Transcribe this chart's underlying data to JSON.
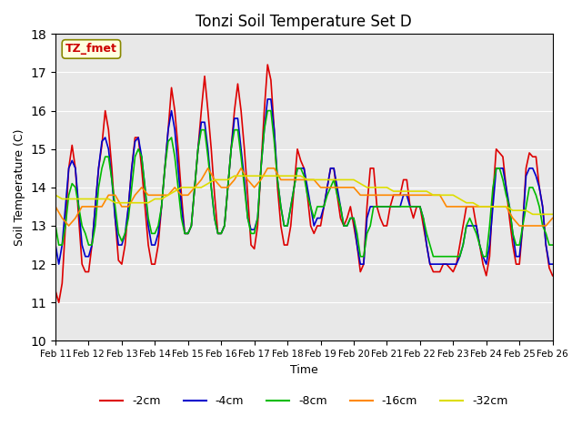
{
  "title": "Tonzi Soil Temperature Set D",
  "xlabel": "Time",
  "ylabel": "Soil Temperature (C)",
  "ylim": [
    10.0,
    18.0
  ],
  "yticks": [
    10.0,
    11.0,
    12.0,
    13.0,
    14.0,
    15.0,
    16.0,
    17.0,
    18.0
  ],
  "xlim": [
    0,
    15
  ],
  "xtick_labels": [
    "Feb 11",
    "Feb 12",
    "Feb 13",
    "Feb 14",
    "Feb 15",
    "Feb 16",
    "Feb 17",
    "Feb 18",
    "Feb 19",
    "Feb 20",
    "Feb 21",
    "Feb 22",
    "Feb 23",
    "Feb 24",
    "Feb 25",
    "Feb 26"
  ],
  "bg_color": "#e8e8e8",
  "legend_label": "TZ_fmet",
  "series": {
    "neg2cm": {
      "color": "#dd0000",
      "label": "-2cm",
      "x": [
        0.0,
        0.1,
        0.2,
        0.3,
        0.4,
        0.5,
        0.6,
        0.7,
        0.8,
        0.9,
        1.0,
        1.1,
        1.2,
        1.3,
        1.4,
        1.5,
        1.6,
        1.7,
        1.8,
        1.9,
        2.0,
        2.1,
        2.2,
        2.3,
        2.4,
        2.5,
        2.6,
        2.7,
        2.8,
        2.9,
        3.0,
        3.1,
        3.2,
        3.3,
        3.4,
        3.5,
        3.6,
        3.7,
        3.8,
        3.9,
        4.0,
        4.1,
        4.2,
        4.3,
        4.4,
        4.5,
        4.6,
        4.7,
        4.8,
        4.9,
        5.0,
        5.1,
        5.2,
        5.3,
        5.4,
        5.5,
        5.6,
        5.7,
        5.8,
        5.9,
        6.0,
        6.1,
        6.2,
        6.3,
        6.4,
        6.5,
        6.6,
        6.7,
        6.8,
        6.9,
        7.0,
        7.1,
        7.2,
        7.3,
        7.4,
        7.5,
        7.6,
        7.7,
        7.8,
        7.9,
        8.0,
        8.1,
        8.2,
        8.3,
        8.4,
        8.5,
        8.6,
        8.7,
        8.8,
        8.9,
        9.0,
        9.1,
        9.2,
        9.3,
        9.4,
        9.5,
        9.6,
        9.7,
        9.8,
        9.9,
        10.0,
        10.1,
        10.2,
        10.3,
        10.4,
        10.5,
        10.6,
        10.7,
        10.8,
        10.9,
        11.0,
        11.1,
        11.2,
        11.3,
        11.4,
        11.5,
        11.6,
        11.7,
        11.8,
        11.9,
        12.0,
        12.1,
        12.2,
        12.3,
        12.4,
        12.5,
        12.6,
        12.7,
        12.8,
        12.9,
        13.0,
        13.1,
        13.2,
        13.3,
        13.4,
        13.5,
        13.6,
        13.7,
        13.8,
        13.9,
        14.0,
        14.1,
        14.2,
        14.3,
        14.4,
        14.5,
        14.6,
        14.7,
        14.8,
        14.9,
        15.0
      ],
      "y": [
        11.3,
        11.0,
        11.5,
        13.0,
        14.5,
        15.1,
        14.5,
        13.2,
        12.0,
        11.8,
        11.8,
        12.5,
        13.5,
        14.5,
        15.1,
        16.0,
        15.5,
        14.5,
        13.2,
        12.1,
        12.0,
        12.5,
        13.5,
        14.5,
        15.3,
        15.3,
        14.5,
        13.5,
        12.5,
        12.0,
        12.0,
        12.5,
        13.5,
        14.5,
        15.5,
        16.6,
        16.0,
        15.0,
        13.8,
        12.8,
        12.8,
        13.0,
        14.0,
        15.0,
        16.0,
        16.9,
        16.0,
        15.0,
        13.8,
        12.8,
        12.8,
        13.0,
        14.0,
        15.0,
        16.0,
        16.7,
        16.0,
        15.0,
        13.8,
        12.5,
        12.4,
        13.0,
        14.5,
        16.0,
        17.2,
        16.8,
        15.5,
        14.0,
        13.0,
        12.5,
        12.5,
        13.0,
        14.0,
        15.0,
        14.7,
        14.5,
        13.8,
        13.0,
        12.8,
        13.0,
        13.0,
        13.5,
        14.0,
        14.5,
        14.5,
        13.8,
        13.2,
        13.0,
        13.2,
        13.5,
        13.0,
        12.5,
        11.8,
        12.0,
        13.5,
        14.5,
        14.5,
        13.5,
        13.2,
        13.0,
        13.0,
        13.5,
        13.8,
        13.8,
        13.8,
        14.2,
        14.2,
        13.5,
        13.2,
        13.5,
        13.5,
        13.0,
        12.5,
        12.0,
        11.8,
        11.8,
        11.8,
        12.0,
        12.0,
        11.9,
        11.8,
        12.0,
        12.5,
        13.0,
        13.5,
        13.5,
        13.5,
        13.0,
        12.5,
        12.0,
        11.7,
        12.2,
        13.8,
        15.0,
        14.9,
        14.8,
        14.0,
        13.2,
        12.5,
        12.0,
        12.0,
        13.0,
        14.5,
        14.9,
        14.8,
        14.8,
        14.0,
        13.5,
        12.5,
        11.9,
        11.7
      ]
    },
    "neg4cm": {
      "color": "#0000cc",
      "label": "-4cm",
      "x": [
        0.0,
        0.1,
        0.2,
        0.3,
        0.4,
        0.5,
        0.6,
        0.7,
        0.8,
        0.9,
        1.0,
        1.1,
        1.2,
        1.3,
        1.4,
        1.5,
        1.6,
        1.7,
        1.8,
        1.9,
        2.0,
        2.1,
        2.2,
        2.3,
        2.4,
        2.5,
        2.6,
        2.7,
        2.8,
        2.9,
        3.0,
        3.1,
        3.2,
        3.3,
        3.4,
        3.5,
        3.6,
        3.7,
        3.8,
        3.9,
        4.0,
        4.1,
        4.2,
        4.3,
        4.4,
        4.5,
        4.6,
        4.7,
        4.8,
        4.9,
        5.0,
        5.1,
        5.2,
        5.3,
        5.4,
        5.5,
        5.6,
        5.7,
        5.8,
        5.9,
        6.0,
        6.1,
        6.2,
        6.3,
        6.4,
        6.5,
        6.6,
        6.7,
        6.8,
        6.9,
        7.0,
        7.1,
        7.2,
        7.3,
        7.4,
        7.5,
        7.6,
        7.7,
        7.8,
        7.9,
        8.0,
        8.1,
        8.2,
        8.3,
        8.4,
        8.5,
        8.6,
        8.7,
        8.8,
        8.9,
        9.0,
        9.1,
        9.2,
        9.3,
        9.4,
        9.5,
        9.6,
        9.7,
        9.8,
        9.9,
        10.0,
        10.1,
        10.2,
        10.3,
        10.4,
        10.5,
        10.6,
        10.7,
        10.8,
        10.9,
        11.0,
        11.1,
        11.2,
        11.3,
        11.4,
        11.5,
        11.6,
        11.7,
        11.8,
        11.9,
        12.0,
        12.1,
        12.2,
        12.3,
        12.4,
        12.5,
        12.6,
        12.7,
        12.8,
        12.9,
        13.0,
        13.1,
        13.2,
        13.3,
        13.4,
        13.5,
        13.6,
        13.7,
        13.8,
        13.9,
        14.0,
        14.1,
        14.2,
        14.3,
        14.4,
        14.5,
        14.6,
        14.7,
        14.8,
        14.9,
        15.0
      ],
      "y": [
        12.5,
        12.0,
        12.5,
        13.5,
        14.5,
        14.7,
        14.5,
        13.5,
        12.5,
        12.2,
        12.2,
        12.5,
        13.5,
        14.5,
        15.2,
        15.3,
        15.0,
        14.2,
        13.2,
        12.5,
        12.5,
        12.8,
        13.5,
        14.5,
        15.2,
        15.3,
        14.8,
        14.0,
        13.0,
        12.5,
        12.5,
        12.8,
        13.5,
        14.5,
        15.5,
        16.0,
        15.5,
        14.5,
        13.5,
        12.8,
        12.8,
        13.0,
        14.0,
        15.0,
        15.7,
        15.7,
        15.0,
        14.0,
        13.2,
        12.8,
        12.8,
        13.0,
        14.0,
        15.0,
        15.8,
        15.8,
        15.0,
        14.2,
        13.2,
        12.9,
        12.9,
        13.2,
        14.5,
        15.5,
        16.3,
        16.3,
        15.5,
        14.2,
        13.5,
        13.0,
        13.0,
        13.5,
        14.0,
        14.5,
        14.5,
        14.5,
        14.0,
        13.5,
        13.0,
        13.2,
        13.2,
        13.5,
        14.0,
        14.5,
        14.5,
        14.0,
        13.5,
        13.0,
        13.0,
        13.2,
        13.2,
        12.5,
        12.0,
        12.0,
        13.2,
        13.5,
        13.5,
        13.5,
        13.5,
        13.5,
        13.5,
        13.5,
        13.5,
        13.5,
        13.5,
        13.8,
        13.8,
        13.5,
        13.5,
        13.5,
        13.5,
        13.2,
        12.5,
        12.0,
        12.0,
        12.0,
        12.0,
        12.0,
        12.0,
        12.0,
        12.0,
        12.0,
        12.2,
        12.5,
        13.0,
        13.0,
        13.0,
        13.0,
        12.5,
        12.2,
        12.0,
        12.5,
        13.5,
        14.5,
        14.5,
        14.5,
        14.0,
        13.5,
        12.8,
        12.2,
        12.2,
        13.0,
        14.3,
        14.5,
        14.5,
        14.3,
        14.0,
        13.5,
        12.5,
        12.0,
        12.0
      ]
    },
    "neg8cm": {
      "color": "#00bb00",
      "label": "-8cm",
      "x": [
        0.0,
        0.1,
        0.2,
        0.3,
        0.4,
        0.5,
        0.6,
        0.7,
        0.8,
        0.9,
        1.0,
        1.1,
        1.2,
        1.3,
        1.4,
        1.5,
        1.6,
        1.7,
        1.8,
        1.9,
        2.0,
        2.1,
        2.2,
        2.3,
        2.4,
        2.5,
        2.6,
        2.7,
        2.8,
        2.9,
        3.0,
        3.1,
        3.2,
        3.3,
        3.4,
        3.5,
        3.6,
        3.7,
        3.8,
        3.9,
        4.0,
        4.1,
        4.2,
        4.3,
        4.4,
        4.5,
        4.6,
        4.7,
        4.8,
        4.9,
        5.0,
        5.1,
        5.2,
        5.3,
        5.4,
        5.5,
        5.6,
        5.7,
        5.8,
        5.9,
        6.0,
        6.1,
        6.2,
        6.3,
        6.4,
        6.5,
        6.6,
        6.7,
        6.8,
        6.9,
        7.0,
        7.1,
        7.2,
        7.3,
        7.4,
        7.5,
        7.6,
        7.7,
        7.8,
        7.9,
        8.0,
        8.1,
        8.2,
        8.3,
        8.4,
        8.5,
        8.6,
        8.7,
        8.8,
        8.9,
        9.0,
        9.1,
        9.2,
        9.3,
        9.4,
        9.5,
        9.6,
        9.7,
        9.8,
        9.9,
        10.0,
        10.1,
        10.2,
        10.3,
        10.4,
        10.5,
        10.6,
        10.7,
        10.8,
        10.9,
        11.0,
        11.1,
        11.2,
        11.3,
        11.4,
        11.5,
        11.6,
        11.7,
        11.8,
        11.9,
        12.0,
        12.1,
        12.2,
        12.3,
        12.4,
        12.5,
        12.6,
        12.7,
        12.8,
        12.9,
        13.0,
        13.1,
        13.2,
        13.3,
        13.4,
        13.5,
        13.6,
        13.7,
        13.8,
        13.9,
        14.0,
        14.1,
        14.2,
        14.3,
        14.4,
        14.5,
        14.6,
        14.7,
        14.8,
        14.9,
        15.0
      ],
      "y": [
        13.0,
        12.5,
        12.5,
        13.0,
        13.8,
        14.1,
        14.0,
        13.5,
        13.0,
        12.8,
        12.5,
        12.5,
        13.0,
        14.0,
        14.5,
        14.8,
        14.8,
        14.2,
        13.5,
        12.8,
        12.6,
        12.8,
        13.2,
        14.0,
        14.8,
        15.0,
        14.8,
        14.0,
        13.2,
        12.8,
        12.8,
        13.0,
        13.5,
        14.5,
        15.2,
        15.3,
        14.8,
        14.0,
        13.2,
        12.8,
        12.8,
        13.0,
        14.0,
        15.0,
        15.5,
        15.5,
        14.8,
        14.0,
        13.2,
        12.8,
        12.8,
        13.0,
        14.0,
        15.0,
        15.5,
        15.5,
        14.8,
        14.0,
        13.2,
        12.8,
        12.8,
        13.2,
        14.5,
        15.5,
        16.0,
        16.0,
        15.2,
        14.2,
        13.5,
        13.0,
        13.0,
        13.5,
        14.0,
        14.5,
        14.5,
        14.3,
        13.8,
        13.5,
        13.2,
        13.5,
        13.5,
        13.5,
        13.8,
        14.0,
        14.2,
        13.8,
        13.5,
        13.0,
        13.0,
        13.2,
        13.2,
        12.8,
        12.2,
        12.2,
        12.8,
        13.0,
        13.5,
        13.5,
        13.5,
        13.5,
        13.5,
        13.5,
        13.5,
        13.5,
        13.5,
        13.5,
        13.5,
        13.5,
        13.5,
        13.5,
        13.5,
        13.2,
        12.8,
        12.5,
        12.2,
        12.2,
        12.2,
        12.2,
        12.2,
        12.2,
        12.2,
        12.2,
        12.2,
        12.5,
        13.0,
        13.2,
        13.0,
        12.8,
        12.5,
        12.2,
        12.2,
        13.0,
        14.0,
        14.5,
        14.5,
        14.2,
        13.8,
        13.5,
        12.8,
        12.5,
        12.5,
        13.0,
        13.5,
        14.0,
        14.0,
        13.8,
        13.5,
        13.0,
        12.8,
        12.5,
        12.5
      ]
    },
    "neg16cm": {
      "color": "#ff8800",
      "label": "-16cm",
      "x": [
        0.0,
        0.2,
        0.4,
        0.6,
        0.8,
        1.0,
        1.2,
        1.4,
        1.6,
        1.8,
        2.0,
        2.2,
        2.4,
        2.6,
        2.8,
        3.0,
        3.2,
        3.4,
        3.6,
        3.8,
        4.0,
        4.2,
        4.4,
        4.6,
        4.8,
        5.0,
        5.2,
        5.4,
        5.6,
        5.8,
        6.0,
        6.2,
        6.4,
        6.6,
        6.8,
        7.0,
        7.2,
        7.4,
        7.6,
        7.8,
        8.0,
        8.2,
        8.4,
        8.6,
        8.8,
        9.0,
        9.2,
        9.4,
        9.6,
        9.8,
        10.0,
        10.2,
        10.4,
        10.6,
        10.8,
        11.0,
        11.2,
        11.4,
        11.6,
        11.8,
        12.0,
        12.2,
        12.4,
        12.6,
        12.8,
        13.0,
        13.2,
        13.4,
        13.6,
        13.8,
        14.0,
        14.2,
        14.4,
        14.6,
        14.8,
        15.0
      ],
      "y": [
        13.5,
        13.2,
        13.0,
        13.2,
        13.5,
        13.5,
        13.5,
        13.5,
        13.8,
        13.8,
        13.5,
        13.5,
        13.8,
        14.0,
        13.8,
        13.8,
        13.8,
        13.8,
        14.0,
        13.8,
        13.8,
        14.0,
        14.2,
        14.5,
        14.2,
        14.0,
        14.0,
        14.2,
        14.5,
        14.2,
        14.0,
        14.2,
        14.5,
        14.5,
        14.2,
        14.2,
        14.2,
        14.2,
        14.2,
        14.2,
        14.0,
        14.0,
        14.0,
        14.0,
        14.0,
        14.0,
        13.8,
        13.8,
        13.8,
        13.8,
        13.8,
        13.8,
        13.8,
        13.8,
        13.8,
        13.8,
        13.8,
        13.8,
        13.8,
        13.5,
        13.5,
        13.5,
        13.5,
        13.5,
        13.5,
        13.5,
        13.5,
        13.5,
        13.5,
        13.2,
        13.0,
        13.0,
        13.0,
        13.0,
        13.0,
        13.2
      ]
    },
    "neg32cm": {
      "color": "#dddd00",
      "label": "-32cm",
      "x": [
        0.0,
        0.2,
        0.4,
        0.6,
        0.8,
        1.0,
        1.2,
        1.4,
        1.6,
        1.8,
        2.0,
        2.2,
        2.4,
        2.6,
        2.8,
        3.0,
        3.2,
        3.4,
        3.6,
        3.8,
        4.0,
        4.2,
        4.4,
        4.6,
        4.8,
        5.0,
        5.2,
        5.4,
        5.6,
        5.8,
        6.0,
        6.2,
        6.4,
        6.6,
        6.8,
        7.0,
        7.2,
        7.4,
        7.6,
        7.8,
        8.0,
        8.2,
        8.4,
        8.6,
        8.8,
        9.0,
        9.2,
        9.4,
        9.6,
        9.8,
        10.0,
        10.2,
        10.4,
        10.6,
        10.8,
        11.0,
        11.2,
        11.4,
        11.6,
        11.8,
        12.0,
        12.2,
        12.4,
        12.6,
        12.8,
        13.0,
        13.2,
        13.4,
        13.6,
        13.8,
        14.0,
        14.2,
        14.4,
        14.6,
        14.8,
        15.0
      ],
      "y": [
        13.8,
        13.7,
        13.7,
        13.7,
        13.7,
        13.7,
        13.7,
        13.7,
        13.7,
        13.6,
        13.6,
        13.6,
        13.6,
        13.6,
        13.6,
        13.7,
        13.7,
        13.8,
        13.9,
        14.0,
        14.0,
        14.0,
        14.0,
        14.1,
        14.2,
        14.2,
        14.2,
        14.3,
        14.3,
        14.3,
        14.3,
        14.3,
        14.3,
        14.3,
        14.3,
        14.3,
        14.3,
        14.3,
        14.2,
        14.2,
        14.2,
        14.2,
        14.2,
        14.2,
        14.2,
        14.2,
        14.1,
        14.0,
        14.0,
        14.0,
        14.0,
        13.9,
        13.9,
        13.9,
        13.9,
        13.9,
        13.9,
        13.8,
        13.8,
        13.8,
        13.8,
        13.7,
        13.6,
        13.6,
        13.5,
        13.5,
        13.5,
        13.5,
        13.5,
        13.4,
        13.4,
        13.4,
        13.3,
        13.3,
        13.3,
        13.3
      ]
    }
  }
}
